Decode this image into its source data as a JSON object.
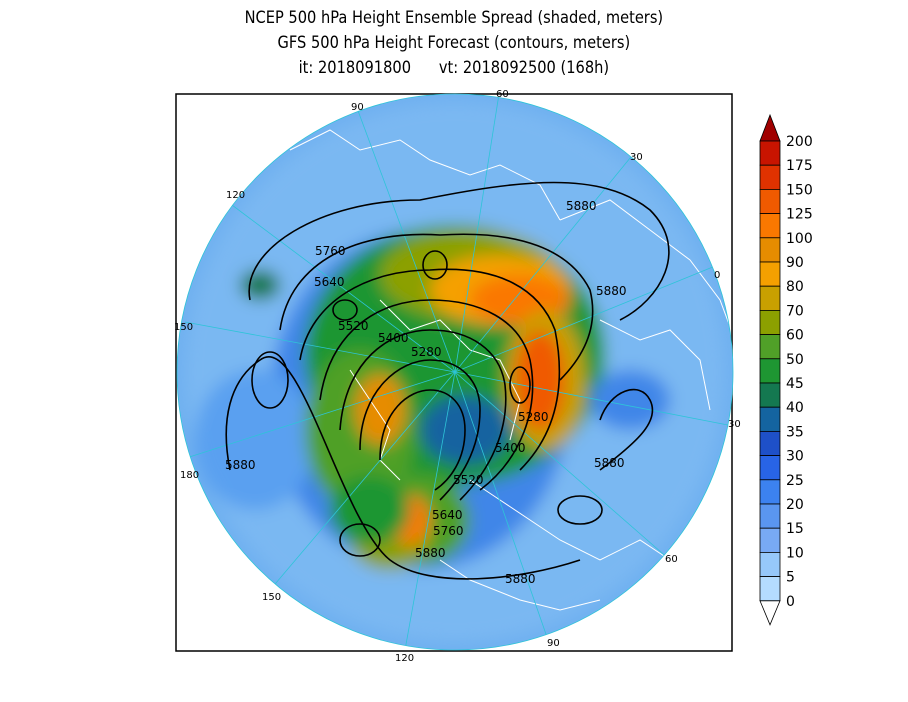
{
  "title": {
    "line1": "NCEP 500 hPa Height Ensemble Spread (shaded, meters)",
    "line2": "GFS 500 hPa Height Forecast (contours, meters)",
    "line3": "it: 2018091800      vt: 2018092500 (168h)"
  },
  "map": {
    "projection": "polar-stereographic-north",
    "ocean_color": "#6fb0f0",
    "coast_color": "#ffffff",
    "contour_color": "#000000",
    "meridian_labels": [
      "60",
      "30",
      "0",
      "30",
      "60",
      "90",
      "120",
      "150",
      "180",
      "150",
      "120",
      "90"
    ],
    "contour_labels": [
      "5880",
      "5760",
      "5640",
      "5520",
      "5400",
      "5280",
      "5880",
      "5280",
      "5400",
      "5880",
      "5880",
      "5520",
      "5640",
      "5760",
      "5880",
      "5880"
    ]
  },
  "colorbar": {
    "levels": [
      "200",
      "175",
      "150",
      "125",
      "100",
      "90",
      "80",
      "70",
      "60",
      "50",
      "45",
      "40",
      "35",
      "30",
      "25",
      "20",
      "15",
      "10",
      "5",
      "0"
    ],
    "colors": [
      "#a00000",
      "#c81400",
      "#e03200",
      "#f05a00",
      "#fa7800",
      "#e68c00",
      "#f5a000",
      "#c8a000",
      "#8ca000",
      "#50a028",
      "#1e9632",
      "#147850",
      "#1464a0",
      "#1e50c8",
      "#2864e6",
      "#3c82f0",
      "#5a96f0",
      "#78aaf5",
      "#96c8fa",
      "#b4dcff"
    ]
  }
}
